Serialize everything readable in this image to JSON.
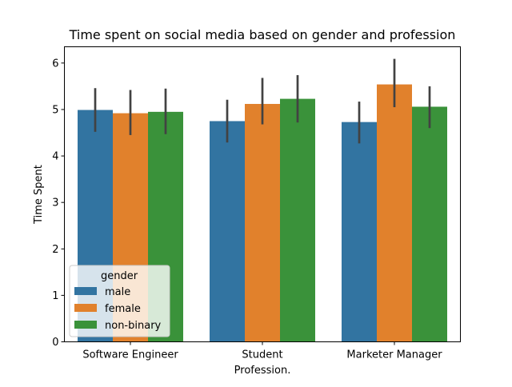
{
  "chart_data": {
    "type": "bar",
    "title": "Time spent on social media based on gender and profession",
    "xlabel": "Profession.",
    "ylabel": "Time Spent",
    "categories": [
      "Software Engineer",
      "Student",
      "Marketer Manager"
    ],
    "ylim": [
      0,
      6.35
    ],
    "yticks": [
      0,
      1,
      2,
      3,
      4,
      5,
      6
    ],
    "grid": false,
    "legend": {
      "title": "gender",
      "placement": "lower-left"
    },
    "series": [
      {
        "name": "male",
        "color": "#3274a1",
        "values": [
          4.99,
          4.75,
          4.73
        ],
        "err_low": [
          4.52,
          4.29,
          4.27
        ],
        "err_high": [
          5.46,
          5.21,
          5.17
        ]
      },
      {
        "name": "female",
        "color": "#e1812c",
        "values": [
          4.92,
          5.12,
          5.54
        ],
        "err_low": [
          4.45,
          4.68,
          5.05
        ],
        "err_high": [
          5.42,
          5.68,
          6.09
        ]
      },
      {
        "name": "non-binary",
        "color": "#3a923a",
        "values": [
          4.95,
          5.23,
          5.06
        ],
        "err_low": [
          4.47,
          4.72,
          4.6
        ],
        "err_high": [
          5.45,
          5.74,
          5.5
        ]
      }
    ]
  }
}
